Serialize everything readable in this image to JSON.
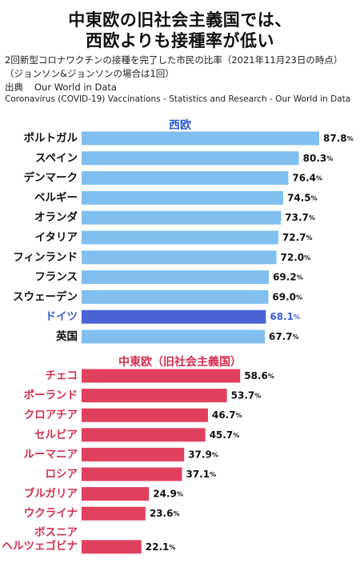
{
  "header": {
    "title_line1": "中東欧の旧社会主義国では、",
    "title_line2": "西欧よりも接種率が低い",
    "subtitle_line1": "2回新型コロナワクチンの接種を完了した市民の比率（2021年11月23日の時点）",
    "subtitle_line2": "（ジョンソン&ジョンソンの場合は1回）",
    "source_label": "出典",
    "source_name": "Our World in Data",
    "source_detail": "Coronavirus (COVID-19) Vaccinations - Statistics and Research - Our World in Data"
  },
  "colors": {
    "western": "#80bff0",
    "highlight": "#4a64d6",
    "eastern": "#e0405c",
    "western_title": "#2a5bd7",
    "highlight_label": "#3f5fd4",
    "eastern_label": "#d42f4e"
  },
  "chart_data": {
    "type": "bar",
    "orientation": "horizontal",
    "unit": "%",
    "groups": [
      {
        "name": "西欧",
        "categories": [
          "ポルトガル",
          "スペイン",
          "デンマーク",
          "ベルギー",
          "オランダ",
          "イタリア",
          "フィンランド",
          "フランス",
          "スウェーデン",
          "ドイツ",
          "英国"
        ],
        "values": [
          87.8,
          80.3,
          76.4,
          74.5,
          73.7,
          72.7,
          72.0,
          69.2,
          69.0,
          68.1,
          67.7
        ],
        "highlight": [
          "ドイツ"
        ]
      },
      {
        "name": "中東欧（旧社会主義国）",
        "categories": [
          "チェコ",
          "ポーランド",
          "クロアチア",
          "セルビア",
          "ルーマニア",
          "ロシア",
          "ブルガリア",
          "ウクライナ",
          "ボスニア\nヘルツェゴビナ"
        ],
        "values": [
          58.6,
          53.7,
          46.7,
          45.7,
          37.9,
          37.1,
          24.9,
          23.6,
          22.1
        ],
        "highlight": []
      }
    ]
  }
}
